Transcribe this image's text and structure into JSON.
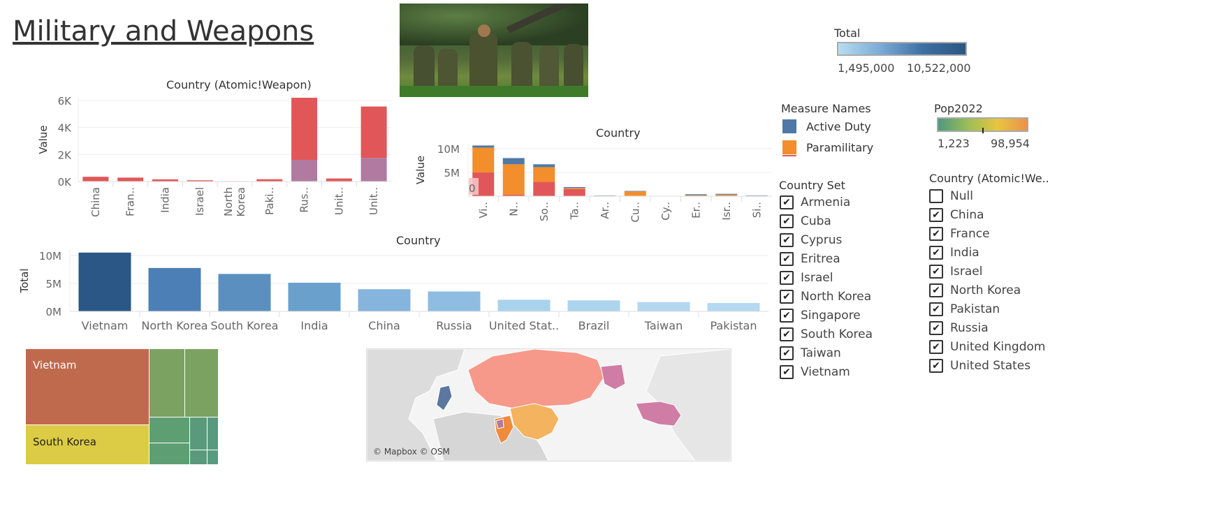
{
  "title": "Military and Weapons",
  "photo": {
    "alt": "soldiers-photo"
  },
  "map": {
    "attribution": "© Mapbox © OSM"
  },
  "legend_total": {
    "title": "Total",
    "min": "1,495,000",
    "max": "10,522,000"
  },
  "legend_measures": {
    "title": "Measure Names",
    "items": [
      {
        "label": "Active Duty",
        "color": "#4e79a7"
      },
      {
        "label": "Paramilitary",
        "color": "#f28e2b"
      }
    ]
  },
  "legend_pop": {
    "title": "Pop2022",
    "min": "1,223",
    "max": "98,954"
  },
  "filter_country_set": {
    "title": "Country Set",
    "items": [
      {
        "label": "Armenia",
        "checked": true
      },
      {
        "label": "Cuba",
        "checked": true
      },
      {
        "label": "Cyprus",
        "checked": true
      },
      {
        "label": "Eritrea",
        "checked": true
      },
      {
        "label": "Israel",
        "checked": true
      },
      {
        "label": "North Korea",
        "checked": true
      },
      {
        "label": "Singapore",
        "checked": true
      },
      {
        "label": "South Korea",
        "checked": true
      },
      {
        "label": "Taiwan",
        "checked": true
      },
      {
        "label": "Vietnam",
        "checked": true
      }
    ]
  },
  "filter_atomic": {
    "title": "Country (Atomic!We..",
    "items": [
      {
        "label": "Null",
        "checked": false
      },
      {
        "label": "China",
        "checked": true
      },
      {
        "label": "France",
        "checked": true
      },
      {
        "label": "India",
        "checked": true
      },
      {
        "label": "Israel",
        "checked": true
      },
      {
        "label": "North Korea",
        "checked": true
      },
      {
        "label": "Pakistan",
        "checked": true
      },
      {
        "label": "Russia",
        "checked": true
      },
      {
        "label": "United Kingdom",
        "checked": true
      },
      {
        "label": "United States",
        "checked": true
      }
    ]
  },
  "chart_data": [
    {
      "type": "bar",
      "title": "Country (Atomic!Weapon)",
      "ylabel": "Value",
      "ylim": [
        0,
        6200
      ],
      "yticks": [
        0,
        2000,
        4000,
        6000
      ],
      "ytick_labels": [
        "0K",
        "2K",
        "4K",
        "6K"
      ],
      "categories": [
        "China",
        "Fran..",
        "India",
        "Israel",
        "North Korea",
        "Paki..",
        "Rus..",
        "Unit..",
        "Unit.."
      ],
      "series": [
        {
          "color": "#b07aa1",
          "values": [
            0,
            0,
            0,
            0,
            0,
            0,
            1600,
            0,
            1750
          ]
        },
        {
          "color": "#e15759",
          "values": [
            350,
            290,
            160,
            90,
            30,
            170,
            4600,
            225,
            3800
          ]
        }
      ]
    },
    {
      "type": "bar",
      "title": "Country",
      "ylabel": "Value",
      "ylim": [
        0,
        11000000
      ],
      "yticks": [
        5000000,
        10000000
      ],
      "ytick_labels": [
        "5M",
        "10M"
      ],
      "zero_label": "0",
      "categories": [
        "Vi..",
        "N..",
        "So..",
        "Ta..",
        "Ar..",
        "Cu..",
        "Cy..",
        "Er..",
        "Isr..",
        "Si.."
      ],
      "series": [
        {
          "color": "#e15759",
          "values": [
            5000000,
            300000,
            3000000,
            1500000,
            50000,
            100000,
            10000,
            50000,
            20000,
            30000
          ]
        },
        {
          "color": "#f28e2b",
          "values": [
            5200000,
            6400000,
            3100000,
            200000,
            50000,
            900000,
            20000,
            150000,
            300000,
            40000
          ]
        },
        {
          "color": "#4e79a7",
          "values": [
            450000,
            1300000,
            600000,
            200000,
            50000,
            100000,
            20000,
            200000,
            170000,
            70000
          ]
        }
      ]
    },
    {
      "type": "bar",
      "title": "Country",
      "ylabel": "Total",
      "ylim": [
        0,
        11000000
      ],
      "yticks": [
        0,
        5000000,
        10000000
      ],
      "ytick_labels": [
        "0M",
        "5M",
        "10M"
      ],
      "categories": [
        "Vietnam",
        "North Korea",
        "South Korea",
        "India",
        "China",
        "Russia",
        "United Stat..",
        "Brazil",
        "Taiwan",
        "Pakistan"
      ],
      "values": [
        10522000,
        7769000,
        6700000,
        5128000,
        3968000,
        3570000,
        2080000,
        1970000,
        1660000,
        1495000
      ],
      "colors": [
        "#2a5786",
        "#4c7fb5",
        "#5a8fc0",
        "#6aa0cc",
        "#85b5dc",
        "#8fbde1",
        "#a9d2ed",
        "#acd4ee",
        "#b2d7f0",
        "#b4d9f1"
      ]
    },
    {
      "type": "treemap",
      "labels": [
        "Vietnam",
        "South Korea"
      ]
    }
  ]
}
